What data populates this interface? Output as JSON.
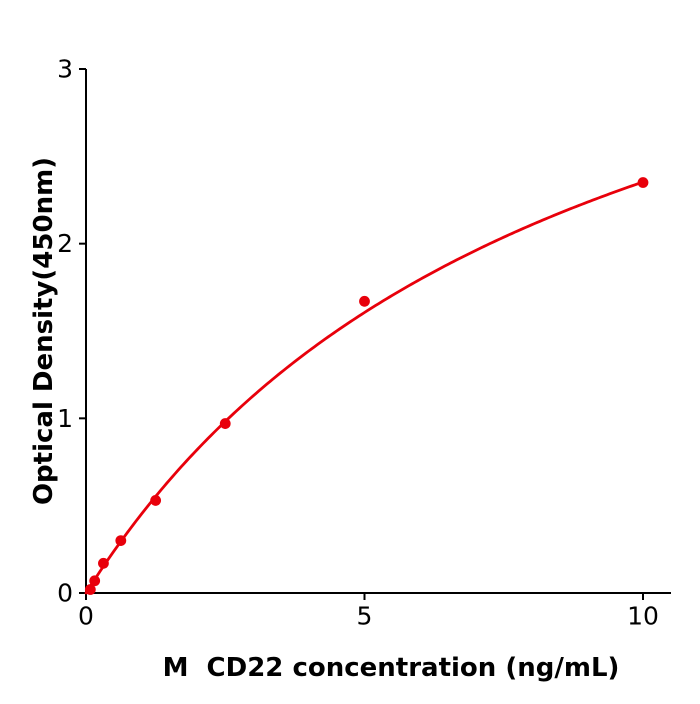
{
  "chart_data": {
    "type": "scatter",
    "title": "",
    "xlabel": "M  CD22 concentration (ng/mL)",
    "ylabel": "Optical Density(450nm)",
    "x": [
      0.078,
      0.156,
      0.313,
      0.625,
      1.25,
      2.5,
      5,
      10
    ],
    "y": [
      0.02,
      0.07,
      0.17,
      0.3,
      0.53,
      0.97,
      1.67,
      2.35
    ],
    "fit_curve": {
      "type": "michaelis_menten",
      "vmax": 4.4,
      "km": 8.7,
      "x_start": 0,
      "x_end": 10
    },
    "xlim": [
      0,
      10.5
    ],
    "ylim": [
      0,
      3
    ],
    "x_ticks": [
      0,
      5,
      10
    ],
    "x_tick_labels": [
      "0",
      "5",
      "10"
    ],
    "y_ticks": [
      0,
      1,
      2,
      3
    ],
    "y_tick_labels": [
      "0",
      "1",
      "2",
      "3"
    ],
    "grid": false,
    "legend": "none",
    "marker_color": "#e8000b",
    "line_color": "#e8000b",
    "axis_color": "#000000",
    "background": "#ffffff",
    "marker_radius": 5.4,
    "curve_stroke_width": 2.8
  }
}
